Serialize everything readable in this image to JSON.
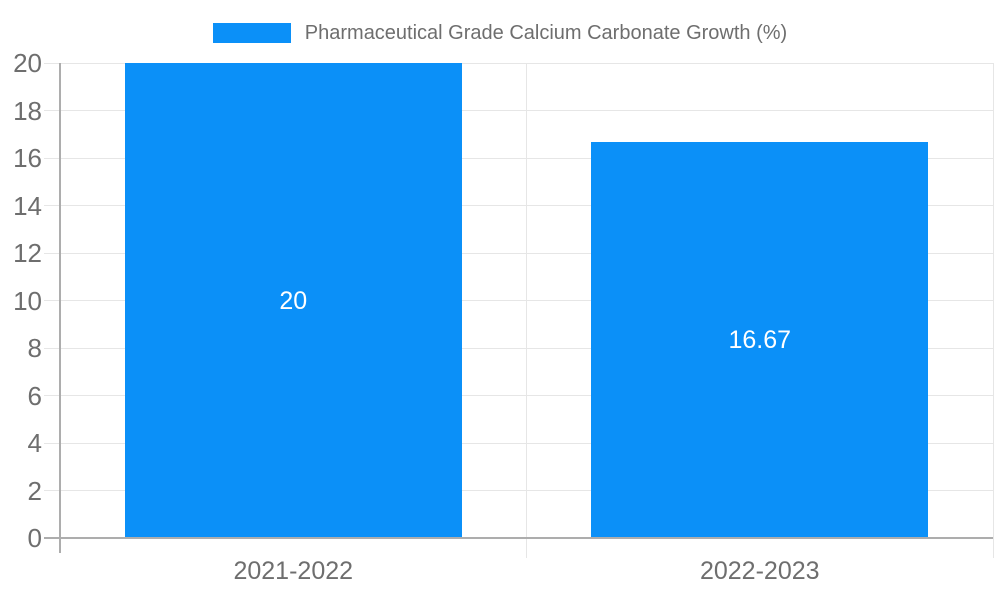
{
  "chart_data": {
    "type": "bar",
    "title": "Pharmaceutical Grade Calcium Carbonate Growth (%)",
    "categories": [
      "2021-2022",
      "2022-2023"
    ],
    "values": [
      20,
      16.67
    ],
    "value_labels": [
      "20",
      "16.67"
    ],
    "yticks": [
      0,
      2,
      4,
      6,
      8,
      10,
      12,
      14,
      16,
      18,
      20
    ],
    "ylim": [
      0,
      20
    ],
    "xlabel": "",
    "ylabel": "",
    "grid": true,
    "legend_position": "top",
    "bar_color": "#0b90f8",
    "grid_color": "#e6e6e6",
    "axis_color": "#adadad",
    "tick_text_color": "#6e6e6e",
    "bar_label_color": "#ffffff",
    "background_color": "#ffffff"
  }
}
